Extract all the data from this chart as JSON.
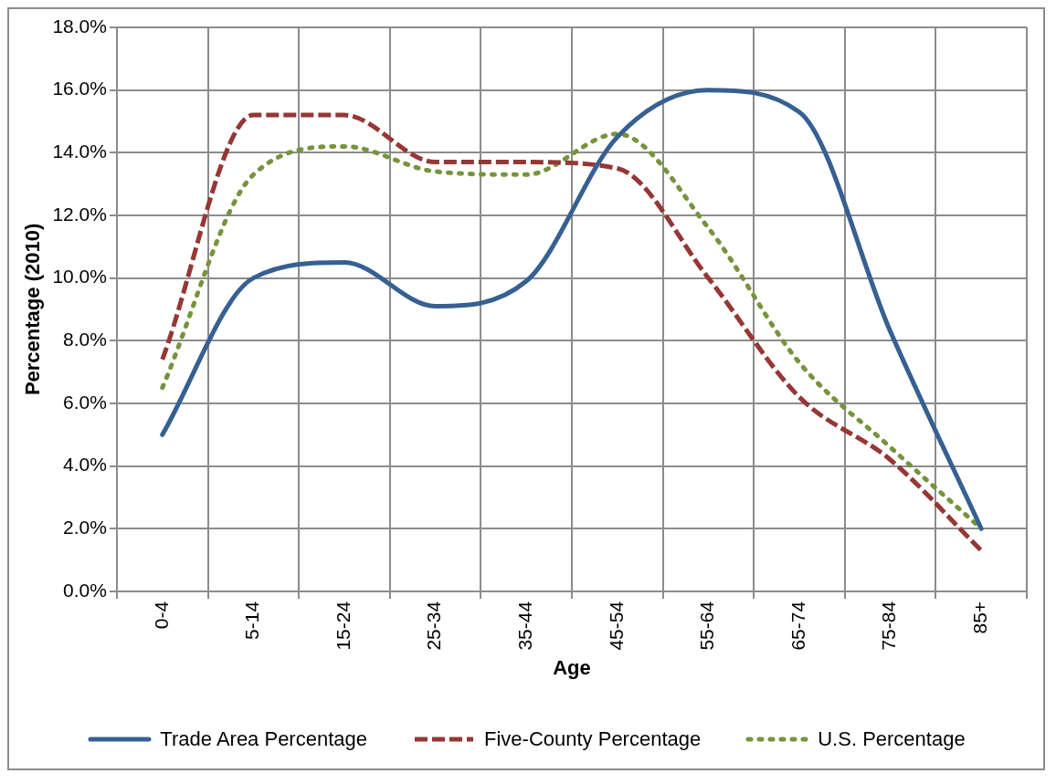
{
  "chart_data": {
    "type": "line",
    "xlabel": "Age",
    "ylabel": "Percentage (2010)",
    "categories": [
      "0-4",
      "5-14",
      "15-24",
      "25-34",
      "35-44",
      "45-54",
      "55-64",
      "65-74",
      "75-84",
      "85+"
    ],
    "series": [
      {
        "name": "Trade Area Percentage",
        "color": "#376092",
        "line_style": "solid",
        "values": [
          5.0,
          10.0,
          10.5,
          9.1,
          9.9,
          14.5,
          16.0,
          15.3,
          8.3,
          2.0
        ]
      },
      {
        "name": "Five-County Percentage",
        "color": "#953735",
        "line_style": "dashed",
        "values": [
          7.4,
          15.2,
          15.2,
          13.7,
          13.7,
          13.5,
          10.0,
          6.2,
          4.2,
          1.3
        ]
      },
      {
        "name": "U.S. Percentage",
        "color": "#77933c",
        "line_style": "dotted",
        "values": [
          6.5,
          13.3,
          14.2,
          13.4,
          13.3,
          14.6,
          11.6,
          7.3,
          4.6,
          2.0
        ]
      }
    ],
    "ylim": [
      0,
      18
    ],
    "yticks": [
      {
        "value": 0,
        "label": "0.0%"
      },
      {
        "value": 2,
        "label": "2.0%"
      },
      {
        "value": 4,
        "label": "4.0%"
      },
      {
        "value": 6,
        "label": "6.0%"
      },
      {
        "value": 8,
        "label": "8.0%"
      },
      {
        "value": 10,
        "label": "10.0%"
      },
      {
        "value": 12,
        "label": "12.0%"
      },
      {
        "value": 14,
        "label": "14.0%"
      },
      {
        "value": 16,
        "label": "16.0%"
      },
      {
        "value": 18,
        "label": "18.0%"
      }
    ],
    "grid": true,
    "legend": "bottom",
    "marker": "none"
  }
}
